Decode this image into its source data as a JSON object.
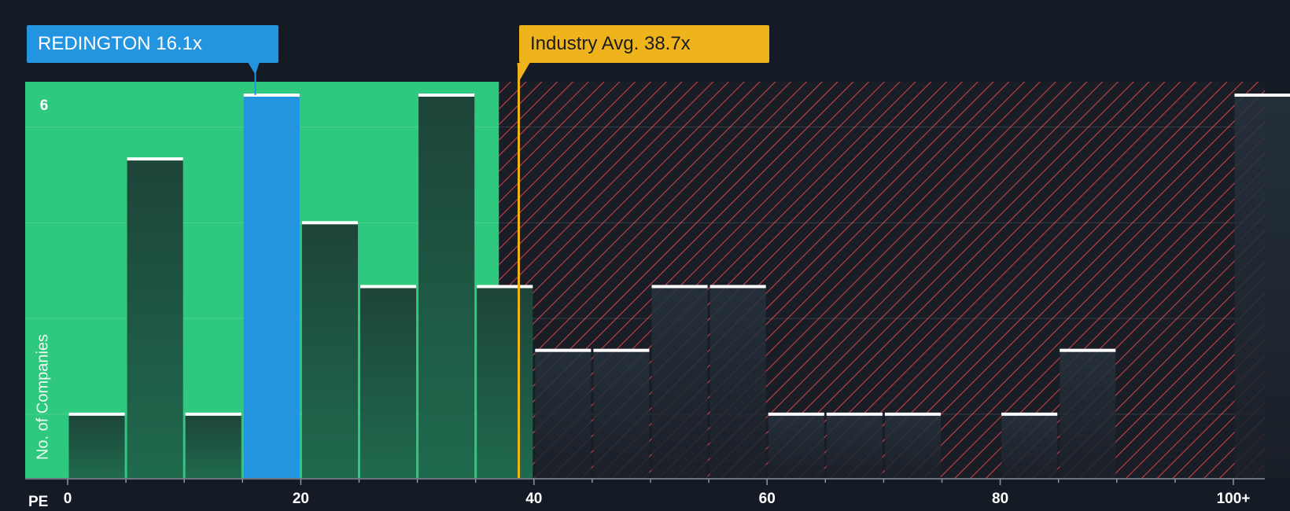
{
  "company_label": "REDINGTON 16.1x",
  "industry_label": "Industry Avg. 38.7x",
  "colors": {
    "background": "#151b24",
    "fair_zone": "#2ec97e",
    "company_bar": "#2394e0",
    "industry_line": "#efb31b",
    "hatch": "#e0444a",
    "bar_dark": "#1a3b31",
    "bar_cap": "#ffffff"
  },
  "chart_data": {
    "type": "bar",
    "title": "",
    "xlabel": "PE",
    "ylabel": "No. of Companies",
    "bin_width": 5,
    "bins": [
      0,
      5,
      10,
      15,
      20,
      25,
      30,
      35,
      40,
      45,
      50,
      55,
      60,
      65,
      70,
      75,
      80,
      85,
      90,
      95,
      100
    ],
    "values": [
      1,
      5,
      1,
      6,
      4,
      3,
      6,
      3,
      2,
      2,
      3,
      3,
      1,
      1,
      1,
      0,
      1,
      2,
      0,
      0,
      6
    ],
    "highlight_bin": 15,
    "company_pe": 16.1,
    "industry_avg_pe": 38.7,
    "fair_zone_max_pe": 37,
    "xlim": [
      0,
      102
    ],
    "ylim": [
      0,
      6
    ],
    "x_ticks": [
      "0",
      "20",
      "40",
      "60",
      "80",
      "100+"
    ],
    "x_tick_values": [
      0,
      20,
      40,
      60,
      80,
      100
    ],
    "y_ticks": [
      "6"
    ],
    "y_tick_values": [
      6
    ],
    "grid": true
  }
}
